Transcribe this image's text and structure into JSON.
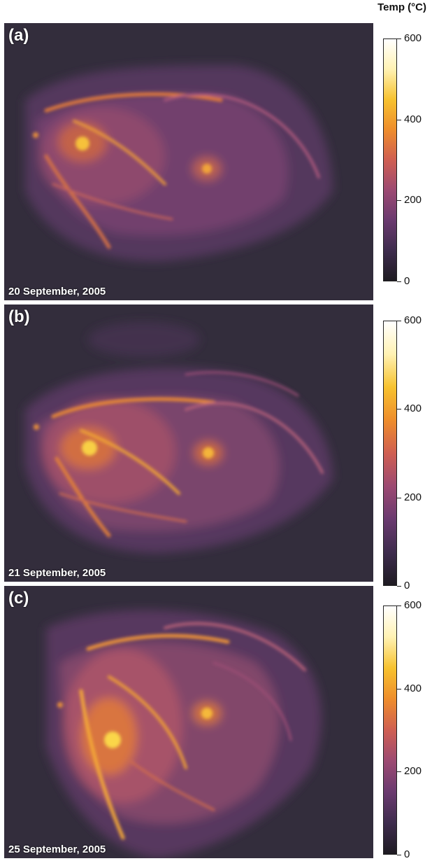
{
  "legend": {
    "title": "Temp (°C)",
    "ticks": [
      "600",
      "400",
      "200",
      "0"
    ],
    "tick_values": [
      600,
      400,
      200,
      0
    ],
    "range": [
      0,
      600
    ],
    "colors": [
      "#1e1b22",
      "#3e2c4d",
      "#6a3a6f",
      "#9c4a72",
      "#cf5f52",
      "#ee8d2c",
      "#f7c22f",
      "#fff2b3",
      "#ffffff"
    ]
  },
  "panels": [
    {
      "label": "(a)",
      "date": "20 September, 2005"
    },
    {
      "label": "(b)",
      "date": "21 September, 2005"
    },
    {
      "label": "(c)",
      "date": "25 September, 2005"
    }
  ]
}
